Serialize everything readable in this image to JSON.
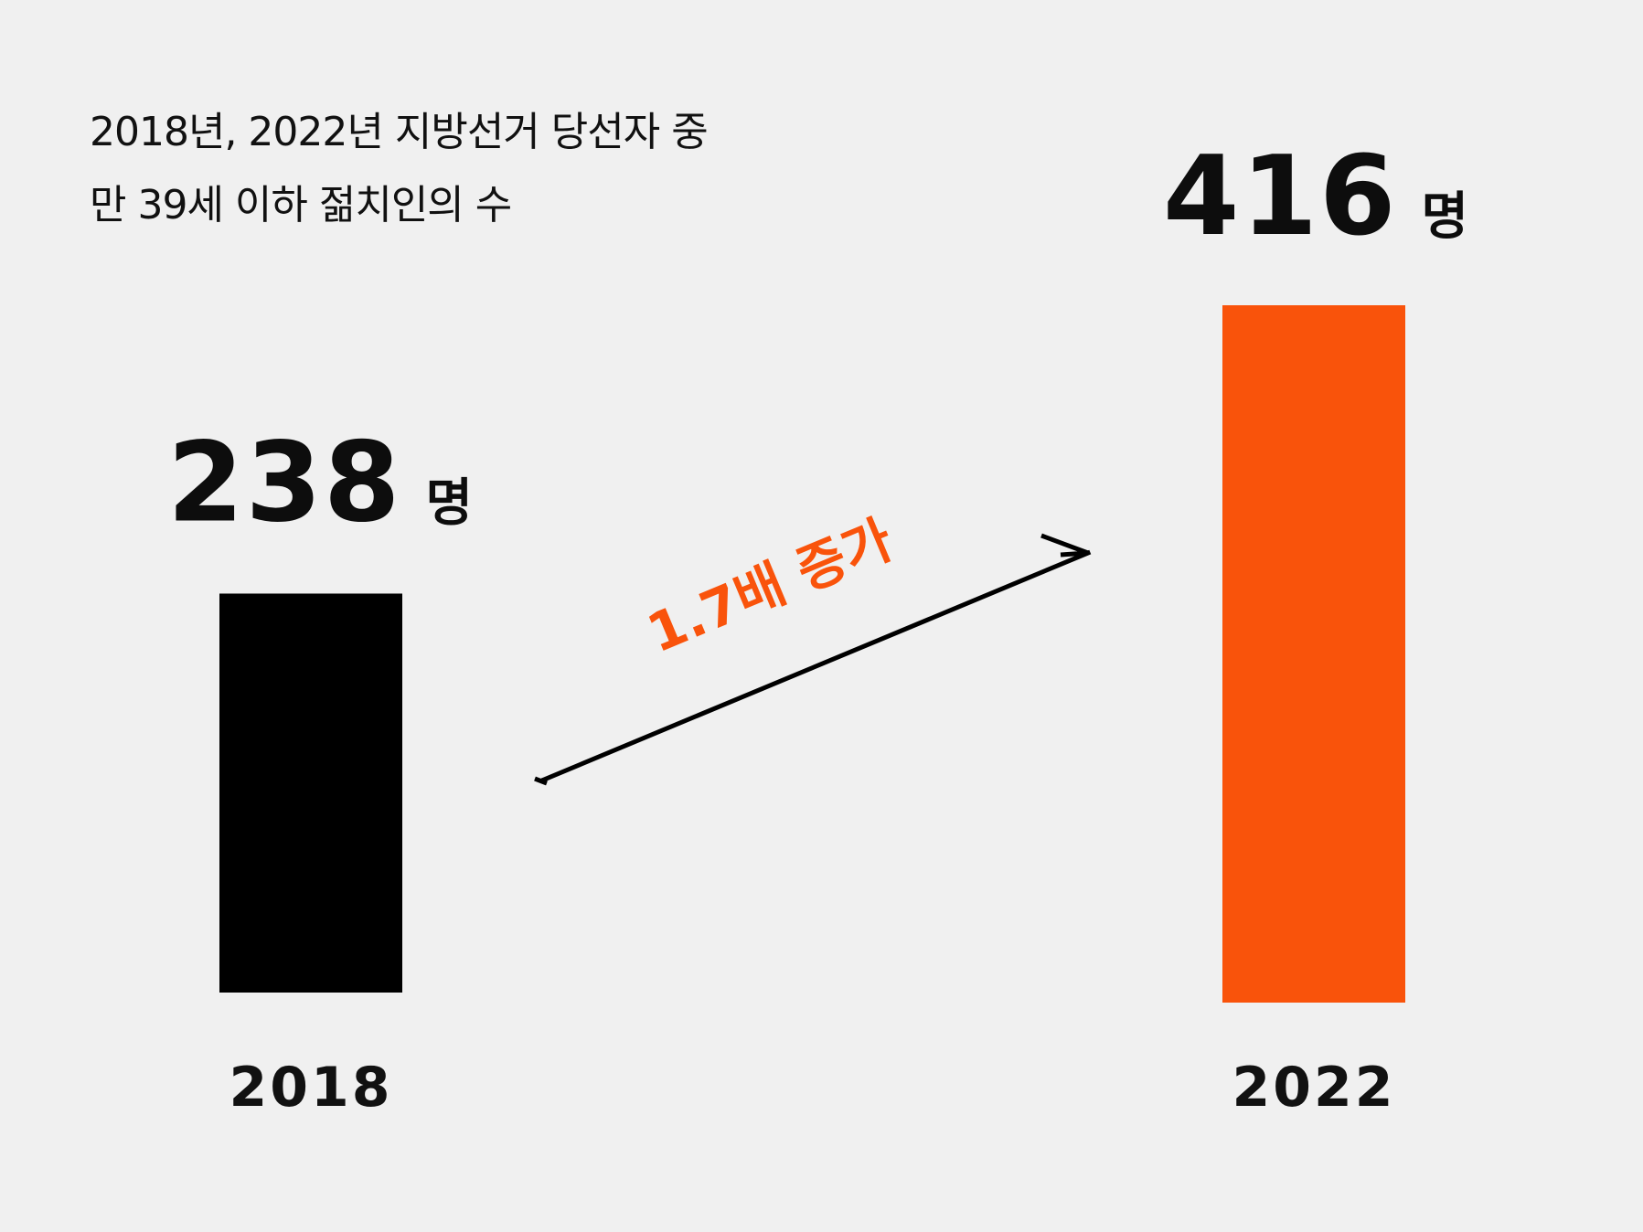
{
  "title_lines": [
    "2018년, 2022년 지방선거 당선자 중",
    "만 39세 이하 젊치인의 수"
  ],
  "chart_data": {
    "type": "bar",
    "title": "2018년, 2022년 지방선거 당선자 중 만 39세 이하 젊치인의 수",
    "categories": [
      "2018",
      "2022"
    ],
    "values": [
      238,
      416
    ],
    "value_labels": [
      "238",
      "416"
    ],
    "unit": "명",
    "bar_colors": [
      "#000000",
      "#f9530b"
    ],
    "annotation": {
      "text": "1.7배 증가",
      "color": "#f9530b"
    },
    "xlabel": "",
    "ylabel": "",
    "ylim": [
      0,
      416
    ],
    "grid": false,
    "legend": "none"
  }
}
